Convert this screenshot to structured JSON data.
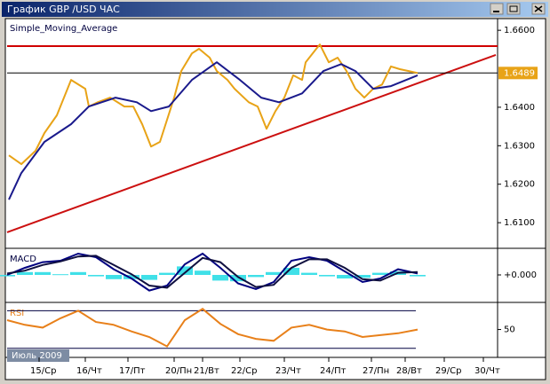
{
  "window": {
    "title": "График GBP /USD  ЧАС"
  },
  "period_label": "Июль 2009",
  "chart_data": [
    {
      "type": "line",
      "title": "Simple_Moving_Average",
      "xlim": [
        0,
        276
      ],
      "xticks": [
        {
          "value": 18,
          "label": "15/Ср"
        },
        {
          "value": 44,
          "label": "16/Чт"
        },
        {
          "value": 68,
          "label": "17/Пт"
        },
        {
          "value": 94,
          "label": "20/Пн"
        },
        {
          "value": 110,
          "label": "21/Вт"
        },
        {
          "value": 131,
          "label": "22/Ср"
        },
        {
          "value": 156,
          "label": "23/Чт"
        },
        {
          "value": 181,
          "label": "24/Пт"
        },
        {
          "value": 205,
          "label": "27/Пн"
        },
        {
          "value": 224,
          "label": "28/Вт"
        },
        {
          "value": 246,
          "label": "29/Ср"
        },
        {
          "value": 268,
          "label": "30/Чт"
        }
      ],
      "ylim": [
        1.6038,
        1.6628
      ],
      "yticks": [
        {
          "value": 1.61,
          "label": "1.6100"
        },
        {
          "value": 1.62,
          "label": "1.6200"
        },
        {
          "value": 1.63,
          "label": "1.6300"
        },
        {
          "value": 1.64,
          "label": "1.6400"
        },
        {
          "value": 1.66,
          "label": "1.6600"
        }
      ],
      "series": [
        {
          "color": "#e8a317",
          "x": [
            1,
            8,
            16,
            21,
            28,
            36,
            44,
            46,
            51,
            58,
            66,
            71,
            76,
            81,
            86,
            94,
            98,
            104,
            108,
            114,
            118,
            124,
            128,
            136,
            141,
            146,
            151,
            156,
            161,
            166,
            168,
            174,
            176,
            181,
            186,
            191,
            196,
            201,
            206,
            211,
            216,
            221,
            226,
            231
          ],
          "values": [
            1.6275,
            1.6252,
            1.6287,
            1.6333,
            1.6379,
            1.6471,
            1.6448,
            1.6402,
            1.6413,
            1.6425,
            1.6402,
            1.6402,
            1.6356,
            1.6298,
            1.631,
            1.6425,
            1.6494,
            1.654,
            1.6552,
            1.6529,
            1.6494,
            1.6471,
            1.6448,
            1.6413,
            1.6402,
            1.6344,
            1.639,
            1.6425,
            1.6483,
            1.6471,
            1.6517,
            1.6552,
            1.6563,
            1.6517,
            1.6529,
            1.6494,
            1.6448,
            1.6425,
            1.6448,
            1.6459,
            1.6506,
            1.6499,
            1.6494,
            1.6489
          ]
        },
        {
          "color": "#1a1a8c",
          "x": [
            1,
            8,
            21,
            36,
            46,
            61,
            73,
            81,
            91,
            104,
            118,
            131,
            143,
            153,
            166,
            178,
            188,
            196,
            206,
            216,
            231
          ],
          "values": [
            1.616,
            1.6229,
            1.631,
            1.6356,
            1.6402,
            1.6425,
            1.6413,
            1.639,
            1.6402,
            1.6471,
            1.6517,
            1.6471,
            1.6425,
            1.6413,
            1.6436,
            1.6494,
            1.6512,
            1.6494,
            1.6448,
            1.6455,
            1.6483
          ]
        }
      ],
      "hline": {
        "value": 1.6559,
        "color": "#d00000"
      },
      "trendline": {
        "x": [
          0,
          275
        ],
        "values": [
          1.6075,
          1.6536
        ],
        "color": "#cc1010"
      },
      "last_price": 1.6489,
      "last_price_color": "#e8a317"
    },
    {
      "type": "macd",
      "title": "MACD",
      "ylim": [
        -0.0035,
        0.0035
      ],
      "yticks": [
        {
          "value": 0,
          "label": "+0.000"
        }
      ],
      "x": [
        0,
        10,
        20,
        30,
        40,
        50,
        60,
        70,
        80,
        90,
        100,
        110,
        120,
        130,
        140,
        150,
        160,
        170,
        180,
        190,
        200,
        210,
        220,
        231
      ],
      "series": [
        {
          "color": "#000080",
          "values": [
            0,
            0.001,
            0.0018,
            0.002,
            0.003,
            0.0025,
            0.0008,
            -0.0005,
            -0.0022,
            -0.0015,
            0.0015,
            0.003,
            0.001,
            -0.0012,
            -0.002,
            -0.001,
            0.002,
            0.0025,
            0.002,
            0.0005,
            -0.001,
            -0.0005,
            0.0008,
            0.0002
          ]
        },
        {
          "color": "#101040",
          "values": [
            0.0002,
            0.0006,
            0.0014,
            0.0019,
            0.0026,
            0.0027,
            0.0014,
            0.0001,
            -0.0015,
            -0.0018,
            0.0003,
            0.0024,
            0.0018,
            -0.0003,
            -0.0017,
            -0.0014,
            0.001,
            0.0022,
            0.0022,
            0.001,
            -0.0006,
            -0.0008,
            0.0003,
            0.0004
          ]
        }
      ],
      "histogram": {
        "color": "#40e0e8",
        "values": [
          -0.0002,
          0.0004,
          0.0004,
          0.0001,
          0.0004,
          -0.0002,
          -0.0006,
          -0.0006,
          -0.0007,
          0.0003,
          0.0012,
          0.0006,
          -0.0008,
          -0.0009,
          -0.0003,
          0.0004,
          0.001,
          0.0003,
          -0.0002,
          -0.0005,
          -0.0004,
          0.0003,
          0.0005,
          -0.0002
        ]
      }
    },
    {
      "type": "rsi",
      "title": "RSI",
      "title_color": "#e8801a",
      "ylim": [
        25,
        77
      ],
      "yticks": [
        50
      ],
      "levels": [
        30,
        70
      ],
      "x": [
        0,
        10,
        20,
        30,
        40,
        50,
        60,
        70,
        80,
        90,
        100,
        110,
        120,
        130,
        140,
        150,
        160,
        170,
        180,
        190,
        200,
        210,
        220,
        231
      ],
      "series": [
        {
          "color": "#e8801a",
          "values": [
            60,
            55,
            52,
            62,
            70,
            58,
            55,
            48,
            42,
            32,
            60,
            72,
            56,
            45,
            40,
            38,
            52,
            55,
            50,
            48,
            42,
            44,
            46,
            50
          ]
        }
      ]
    }
  ]
}
